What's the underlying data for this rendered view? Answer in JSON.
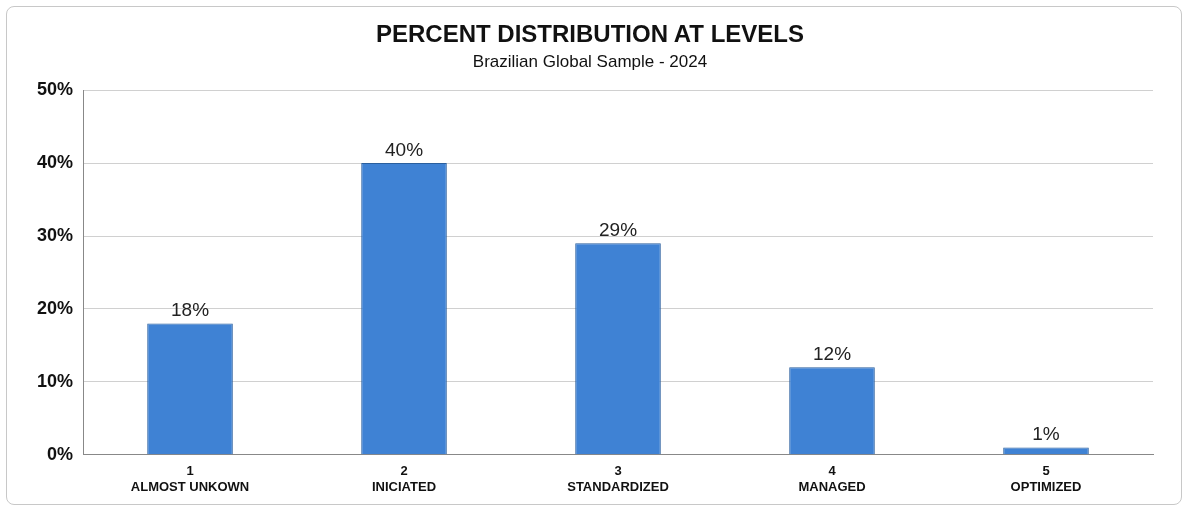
{
  "chart_data": {
    "type": "bar",
    "title": "PERCENT DISTRIBUTION AT LEVELS",
    "subtitle": "Brazilian Global Sample - 2024",
    "categories": [
      "1\nALMOST UNKOWN",
      "2\nINICIATED",
      "3\nSTANDARDIZED",
      "4\nMANAGED",
      "5\nOPTIMIZED"
    ],
    "values": [
      18,
      40,
      29,
      12,
      1
    ],
    "value_labels": [
      "18%",
      "40%",
      "29%",
      "12%",
      "1%"
    ],
    "color": "#3f82d4",
    "ylim": [
      0,
      50
    ],
    "yticks": [
      {
        "value": 0,
        "label": "0%"
      },
      {
        "value": 10,
        "label": "10%"
      },
      {
        "value": 20,
        "label": "20%"
      },
      {
        "value": 30,
        "label": "30%"
      },
      {
        "value": 40,
        "label": "40%"
      },
      {
        "value": 50,
        "label": "50%"
      }
    ],
    "grid": "y",
    "legend": false
  }
}
